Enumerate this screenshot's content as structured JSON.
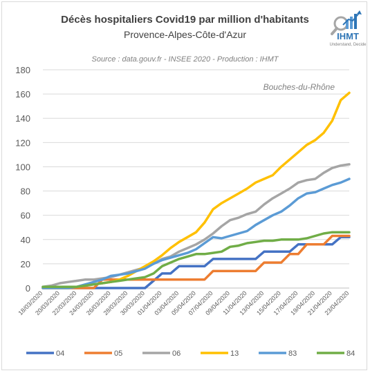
{
  "chart_data": {
    "type": "line",
    "title": "Décès hospitaliers Covid19 par million d'habitants",
    "subtitle": "Provence-Alpes-Côte-d'Azur",
    "source": "Source : data.gouv.fr - INSEE 2020 - Production : IHMT",
    "annotation": "Bouches-du-Rhône",
    "ylim": [
      0,
      180
    ],
    "yticks": [
      0,
      20,
      40,
      60,
      80,
      100,
      120,
      140,
      160,
      180
    ],
    "grid": "horizontal",
    "legend_position": "bottom",
    "x": [
      "18/03/2020",
      "19/03/2020",
      "20/03/2020",
      "21/03/2020",
      "22/03/2020",
      "23/03/2020",
      "24/03/2020",
      "25/03/2020",
      "26/03/2020",
      "27/03/2020",
      "28/03/2020",
      "29/03/2020",
      "30/03/2020",
      "31/03/2020",
      "01/04/2020",
      "02/04/2020",
      "03/04/2020",
      "04/04/2020",
      "05/04/2020",
      "06/04/2020",
      "07/04/2020",
      "08/04/2020",
      "09/04/2020",
      "10/04/2020",
      "11/04/2020",
      "12/04/2020",
      "13/04/2020",
      "14/04/2020",
      "15/04/2020",
      "16/04/2020",
      "17/04/2020",
      "18/04/2020",
      "19/04/2020",
      "20/04/2020",
      "21/04/2020",
      "22/04/2020",
      "23/04/2020"
    ],
    "xtick_labels": [
      "18/03/2020",
      "20/03/2020",
      "22/03/2020",
      "24/03/2020",
      "26/03/2020",
      "28/03/2020",
      "30/03/2020",
      "01/04/2020",
      "03/04/2020",
      "05/04/2020",
      "07/04/2020",
      "09/04/2020",
      "11/04/2020",
      "13/04/2020",
      "15/04/2020",
      "17/04/2020",
      "19/04/2020",
      "21/04/2020",
      "23/04/2020"
    ],
    "series": [
      {
        "name": "04",
        "color": "#4472c4",
        "values": [
          0,
          0,
          0,
          0,
          0,
          0,
          0,
          0,
          0,
          0,
          0,
          0,
          0,
          6,
          12,
          12,
          18,
          18,
          18,
          18,
          24,
          24,
          24,
          24,
          24,
          24,
          30,
          30,
          30,
          30,
          36,
          36,
          36,
          36,
          36,
          42,
          42
        ]
      },
      {
        "name": "05",
        "color": "#ed7d31",
        "values": [
          0,
          0,
          0,
          0,
          0,
          0,
          0,
          7,
          7,
          7,
          7,
          7,
          7,
          7,
          7,
          7,
          7,
          7,
          7,
          7,
          14,
          14,
          14,
          14,
          14,
          14,
          21,
          21,
          21,
          28,
          28,
          36,
          36,
          36,
          43,
          43,
          43
        ]
      },
      {
        "name": "06",
        "color": "#a5a5a5",
        "values": [
          1,
          2,
          4,
          5,
          6,
          7,
          7,
          8,
          9,
          11,
          13,
          15,
          17,
          20,
          24,
          26,
          30,
          33,
          36,
          40,
          45,
          51,
          56,
          58,
          61,
          63,
          69,
          74,
          78,
          82,
          87,
          89,
          90,
          95,
          99,
          101,
          102
        ]
      },
      {
        "name": "13",
        "color": "#ffc000",
        "values": [
          0,
          0,
          0,
          0,
          1,
          2,
          3,
          4,
          5,
          7,
          10,
          14,
          18,
          22,
          27,
          33,
          38,
          42,
          46,
          54,
          65,
          70,
          74,
          78,
          82,
          87,
          90,
          93,
          100,
          106,
          112,
          118,
          122,
          128,
          138,
          155,
          161
        ]
      },
      {
        "name": "83",
        "color": "#5b9bd5",
        "values": [
          0,
          0,
          0,
          0,
          1,
          3,
          5,
          7,
          10,
          11,
          12,
          14,
          16,
          20,
          23,
          25,
          27,
          29,
          32,
          37,
          42,
          41,
          43,
          45,
          47,
          52,
          56,
          60,
          63,
          68,
          74,
          78,
          79,
          82,
          85,
          87,
          90
        ]
      },
      {
        "name": "84",
        "color": "#70ad47",
        "values": [
          1,
          1,
          1,
          1,
          1,
          2,
          3,
          4,
          5,
          6,
          7,
          8,
          9,
          12,
          18,
          21,
          24,
          26,
          28,
          28,
          29,
          30,
          34,
          35,
          37,
          38,
          39,
          39,
          40,
          40,
          40,
          41,
          43,
          45,
          46,
          46,
          46
        ]
      }
    ]
  },
  "logo": {
    "text": "IHMT",
    "tagline": "Understand, Decide"
  }
}
